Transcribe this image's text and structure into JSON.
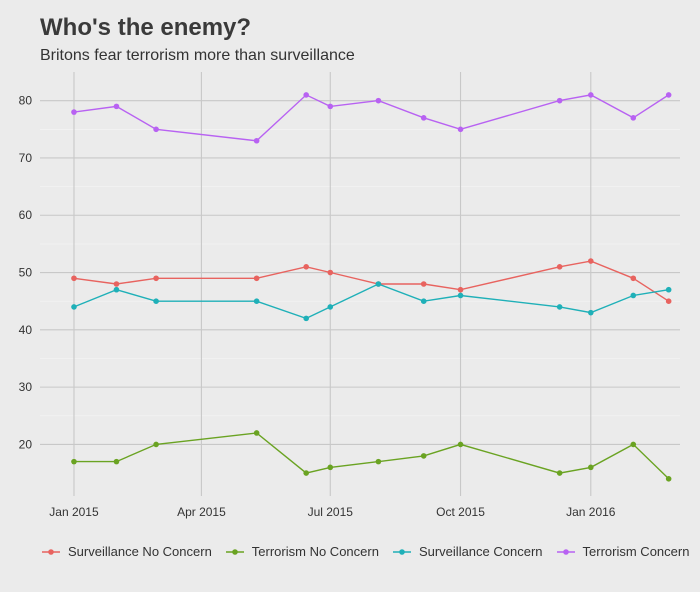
{
  "chart_data": {
    "type": "line",
    "title": "Who's the enemy?",
    "subtitle": "Britons fear terrorism more than surveillance",
    "xlabel": "",
    "ylabel": "",
    "x": [
      "2015-01-01",
      "2015-02-10",
      "2015-03-10",
      "2015-05-20",
      "2015-06-10",
      "2015-07-01",
      "2015-07-35",
      "2015-08-24",
      "2015-10-01",
      "2015-11-25",
      "2016-01-01",
      "2016-01-31",
      "2016-02-25"
    ],
    "x_dates": [
      "2015-01-01",
      "2015-02-10",
      "2015-03-10",
      "2015-05-20",
      "2015-06-10",
      "2015-07-01",
      "2015-08-04",
      "2015-09-05",
      "2015-10-01",
      "2015-12-10",
      "2016-01-01",
      "2016-01-31",
      "2016-02-25"
    ],
    "ylim": [
      11,
      85
    ],
    "yticks": [
      20,
      30,
      40,
      50,
      60,
      70,
      80
    ],
    "xticks": [
      {
        "date": "2015-01-01",
        "label": "Jan 2015"
      },
      {
        "date": "2015-04-01",
        "label": "Apr 2015"
      },
      {
        "date": "2015-07-01",
        "label": "Jul 2015"
      },
      {
        "date": "2015-10-01",
        "label": "Oct 2015"
      },
      {
        "date": "2016-01-01",
        "label": "Jan 2016"
      }
    ],
    "grid": true,
    "legend_position": "bottom",
    "series": [
      {
        "name": "Surveillance No Concern",
        "color": "#e8635f",
        "points": [
          [
            "2015-01-01",
            49
          ],
          [
            "2015-01-31",
            48
          ],
          [
            "2015-02-28",
            49
          ],
          [
            "2015-05-10",
            49
          ],
          [
            "2015-06-14",
            51
          ],
          [
            "2015-07-01",
            50
          ],
          [
            "2015-08-04",
            48
          ],
          [
            "2015-09-05",
            48
          ],
          [
            "2015-10-01",
            47
          ],
          [
            "2015-12-10",
            51
          ],
          [
            "2016-01-01",
            52
          ],
          [
            "2016-01-31",
            49
          ],
          [
            "2016-02-25",
            45
          ]
        ]
      },
      {
        "name": "Terrorism No Concern",
        "color": "#6aa322",
        "points": [
          [
            "2015-01-01",
            17
          ],
          [
            "2015-01-31",
            17
          ],
          [
            "2015-02-28",
            20
          ],
          [
            "2015-05-10",
            22
          ],
          [
            "2015-06-14",
            15
          ],
          [
            "2015-07-01",
            16
          ],
          [
            "2015-08-04",
            17
          ],
          [
            "2015-09-05",
            18
          ],
          [
            "2015-10-01",
            20
          ],
          [
            "2015-12-10",
            15
          ],
          [
            "2016-01-01",
            16
          ],
          [
            "2016-01-31",
            20
          ],
          [
            "2016-02-25",
            14
          ]
        ]
      },
      {
        "name": "Surveillance Concern",
        "color": "#1fb0b8",
        "points": [
          [
            "2015-01-01",
            44
          ],
          [
            "2015-01-31",
            47
          ],
          [
            "2015-02-28",
            45
          ],
          [
            "2015-05-10",
            45
          ],
          [
            "2015-06-14",
            42
          ],
          [
            "2015-07-01",
            44
          ],
          [
            "2015-08-04",
            48
          ],
          [
            "2015-09-05",
            45
          ],
          [
            "2015-10-01",
            46
          ],
          [
            "2015-12-10",
            44
          ],
          [
            "2016-01-01",
            43
          ],
          [
            "2016-01-31",
            46
          ],
          [
            "2016-02-25",
            47
          ]
        ]
      },
      {
        "name": "Terrorism Concern",
        "color": "#b862f2",
        "points": [
          [
            "2015-01-01",
            78
          ],
          [
            "2015-01-31",
            79
          ],
          [
            "2015-02-28",
            75
          ],
          [
            "2015-05-10",
            73
          ],
          [
            "2015-06-14",
            81
          ],
          [
            "2015-07-01",
            79
          ],
          [
            "2015-08-04",
            80
          ],
          [
            "2015-09-05",
            77
          ],
          [
            "2015-10-01",
            75
          ],
          [
            "2015-12-10",
            80
          ],
          [
            "2016-01-01",
            81
          ],
          [
            "2016-01-31",
            77
          ],
          [
            "2016-02-25",
            81
          ]
        ]
      }
    ]
  }
}
